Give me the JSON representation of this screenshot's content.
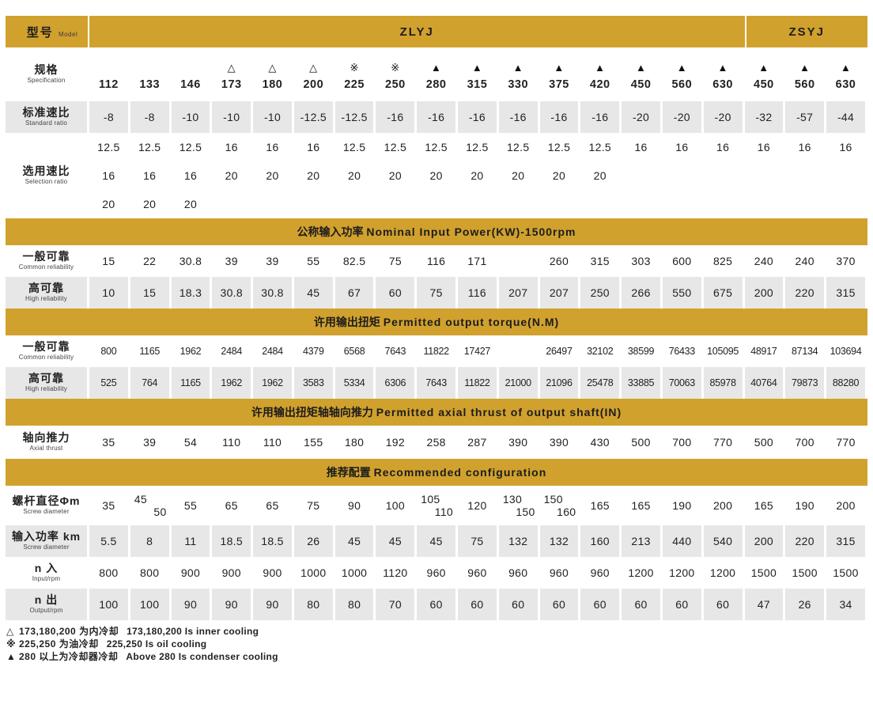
{
  "colors": {
    "gold": "#D1A12E",
    "stripe": "#E7E7E7",
    "text": "#222222"
  },
  "header": {
    "model_zh": "型号",
    "model_en": "Model",
    "groups": [
      {
        "label": "ZLYJ",
        "span": 16
      },
      {
        "label": "ZSYJ",
        "span": 3
      }
    ]
  },
  "table": {
    "columns": 19,
    "rows": [
      {
        "type": "spec",
        "id": "specification",
        "label_zh": "规格",
        "label_en": "Specification",
        "striped": false,
        "symbols": [
          "",
          "",
          "",
          "△",
          "△",
          "△",
          "※",
          "※",
          "▲",
          "▲",
          "▲",
          "▲",
          "▲",
          "▲",
          "▲",
          "▲",
          "▲",
          "▲",
          "▲"
        ],
        "values": [
          "112",
          "133",
          "146",
          "173",
          "180",
          "200",
          "225",
          "250",
          "280",
          "315",
          "330",
          "375",
          "420",
          "450",
          "560",
          "630",
          "450",
          "560",
          "630"
        ]
      },
      {
        "type": "simple",
        "id": "standard-ratio",
        "label_zh": "标准速比",
        "label_en": "Standard ratio",
        "striped": true,
        "values": [
          "-8",
          "-8",
          "-10",
          "-10",
          "-10",
          "-12.5",
          "-12.5",
          "-16",
          "-16",
          "-16",
          "-16",
          "-16",
          "-16",
          "-20",
          "-20",
          "-20",
          "-32",
          "-57",
          "-44"
        ]
      },
      {
        "type": "multiline",
        "id": "selection-ratio",
        "label_zh": "选用速比",
        "label_en": "Selection ratio",
        "striped": false,
        "lines": [
          [
            "12.5",
            "12.5",
            "12.5",
            "16",
            "16",
            "16",
            "12.5",
            "12.5",
            "12.5",
            "12.5",
            "12.5",
            "12.5",
            "12.5",
            "16",
            "16",
            "16",
            "16",
            "16",
            "16"
          ],
          [
            "16",
            "16",
            "16",
            "20",
            "20",
            "20",
            "20",
            "20",
            "20",
            "20",
            "20",
            "20",
            "20",
            "",
            "",
            "",
            "",
            "",
            ""
          ],
          [
            "20",
            "20",
            "20",
            "",
            "",
            "",
            "",
            "",
            "",
            "",
            "",
            "",
            "",
            "",
            "",
            "",
            "",
            "",
            ""
          ]
        ]
      },
      {
        "type": "band",
        "id": "band-input-power",
        "title_zh": "公称输入功率",
        "title_en": "Nominal Input Power(KW)-1500rpm"
      },
      {
        "type": "simple",
        "id": "power-common",
        "label_zh": "一般可靠",
        "label_en": "Common reliability",
        "striped": false,
        "values": [
          "15",
          "22",
          "30.8",
          "39",
          "39",
          "55",
          "82.5",
          "75",
          "116",
          "171",
          "",
          "260",
          "315",
          "303",
          "600",
          "825",
          "240",
          "240",
          "370"
        ]
      },
      {
        "type": "simple",
        "id": "power-high",
        "label_zh": "高可靠",
        "label_en": "High reliability",
        "striped": true,
        "values": [
          "10",
          "15",
          "18.3",
          "30.8",
          "30.8",
          "45",
          "67",
          "60",
          "75",
          "116",
          "207",
          "207",
          "250",
          "266",
          "550",
          "675",
          "200",
          "220",
          "315"
        ]
      },
      {
        "type": "band",
        "id": "band-output-torque",
        "title_zh": "许用输出扭矩",
        "title_en": "Permitted output torque(N.M)"
      },
      {
        "type": "simple",
        "id": "torque-common",
        "label_zh": "一般可靠",
        "label_en": "Common reliability",
        "striped": false,
        "compact": true,
        "values": [
          "800",
          "1165",
          "1962",
          "2484",
          "2484",
          "4379",
          "6568",
          "7643",
          "11822",
          "17427",
          "",
          "26497",
          "32102",
          "38599",
          "76433",
          "105095",
          "48917",
          "87134",
          "103694"
        ]
      },
      {
        "type": "simple",
        "id": "torque-high",
        "label_zh": "高可靠",
        "label_en": "High reliability",
        "striped": true,
        "compact": true,
        "values": [
          "525",
          "764",
          "1165",
          "1962",
          "1962",
          "3583",
          "5334",
          "6306",
          "7643",
          "11822",
          "21000",
          "21096",
          "25478",
          "33885",
          "70063",
          "85978",
          "40764",
          "79873",
          "88280"
        ]
      },
      {
        "type": "band",
        "id": "band-axial-thrust",
        "title_zh": "许用输出扭矩轴轴向推力",
        "title_en": "Permitted axial thrust of output shaft(IN)"
      },
      {
        "type": "simple",
        "id": "axial",
        "label_zh": "轴向推力",
        "label_en": "Axial thrust",
        "striped": false,
        "values": [
          "35",
          "39",
          "54",
          "110",
          "110",
          "155",
          "180",
          "192",
          "258",
          "287",
          "390",
          "390",
          "430",
          "500",
          "700",
          "770",
          "500",
          "700",
          "770"
        ]
      },
      {
        "type": "band",
        "id": "band-configuration",
        "title_zh": "推荐配置",
        "title_en": "Recommended configuration"
      },
      {
        "type": "simple",
        "id": "screw",
        "label_zh": "螺杆直径Φm",
        "label_en": "Screw diameter",
        "striped": false,
        "values": [
          "35",
          "45|50",
          "55",
          "65",
          "65",
          "75",
          "90",
          "100",
          "105|110",
          "120",
          "130|150",
          "150|160",
          "165",
          "165",
          "190",
          "200",
          "165",
          "190",
          "200"
        ]
      },
      {
        "type": "simple",
        "id": "input-power-km",
        "label_zh": "输入功率 km",
        "label_en": "Screw diameter",
        "striped": true,
        "values": [
          "5.5",
          "8",
          "11",
          "18.5",
          "18.5",
          "26",
          "45",
          "45",
          "45",
          "75",
          "132",
          "132",
          "160",
          "213",
          "440",
          "540",
          "200",
          "220",
          "315"
        ]
      },
      {
        "type": "simple",
        "id": "n-in",
        "label_zh": "n 入",
        "label_en": "Input/rpm",
        "striped": false,
        "values": [
          "800",
          "800",
          "900",
          "900",
          "900",
          "1000",
          "1000",
          "1120",
          "960",
          "960",
          "960",
          "960",
          "960",
          "1200",
          "1200",
          "1200",
          "1500",
          "1500",
          "1500"
        ]
      },
      {
        "type": "simple",
        "id": "n-out",
        "label_zh": "n 出",
        "label_en": "Output/rpm",
        "striped": true,
        "values": [
          "100",
          "100",
          "90",
          "90",
          "90",
          "80",
          "80",
          "70",
          "60",
          "60",
          "60",
          "60",
          "60",
          "60",
          "60",
          "60",
          "47",
          "26",
          "34"
        ]
      }
    ]
  },
  "footnotes": [
    {
      "symbol": "△",
      "zh": "173,180,200 为内冷却",
      "en": "173,180,200 Is inner cooling"
    },
    {
      "symbol": "※",
      "zh": "225,250 为油冷却",
      "en": "225,250 Is oil cooling"
    },
    {
      "symbol": "▲",
      "zh": "280 以上为冷却器冷却",
      "en": "Above 280 Is condenser cooling"
    }
  ]
}
